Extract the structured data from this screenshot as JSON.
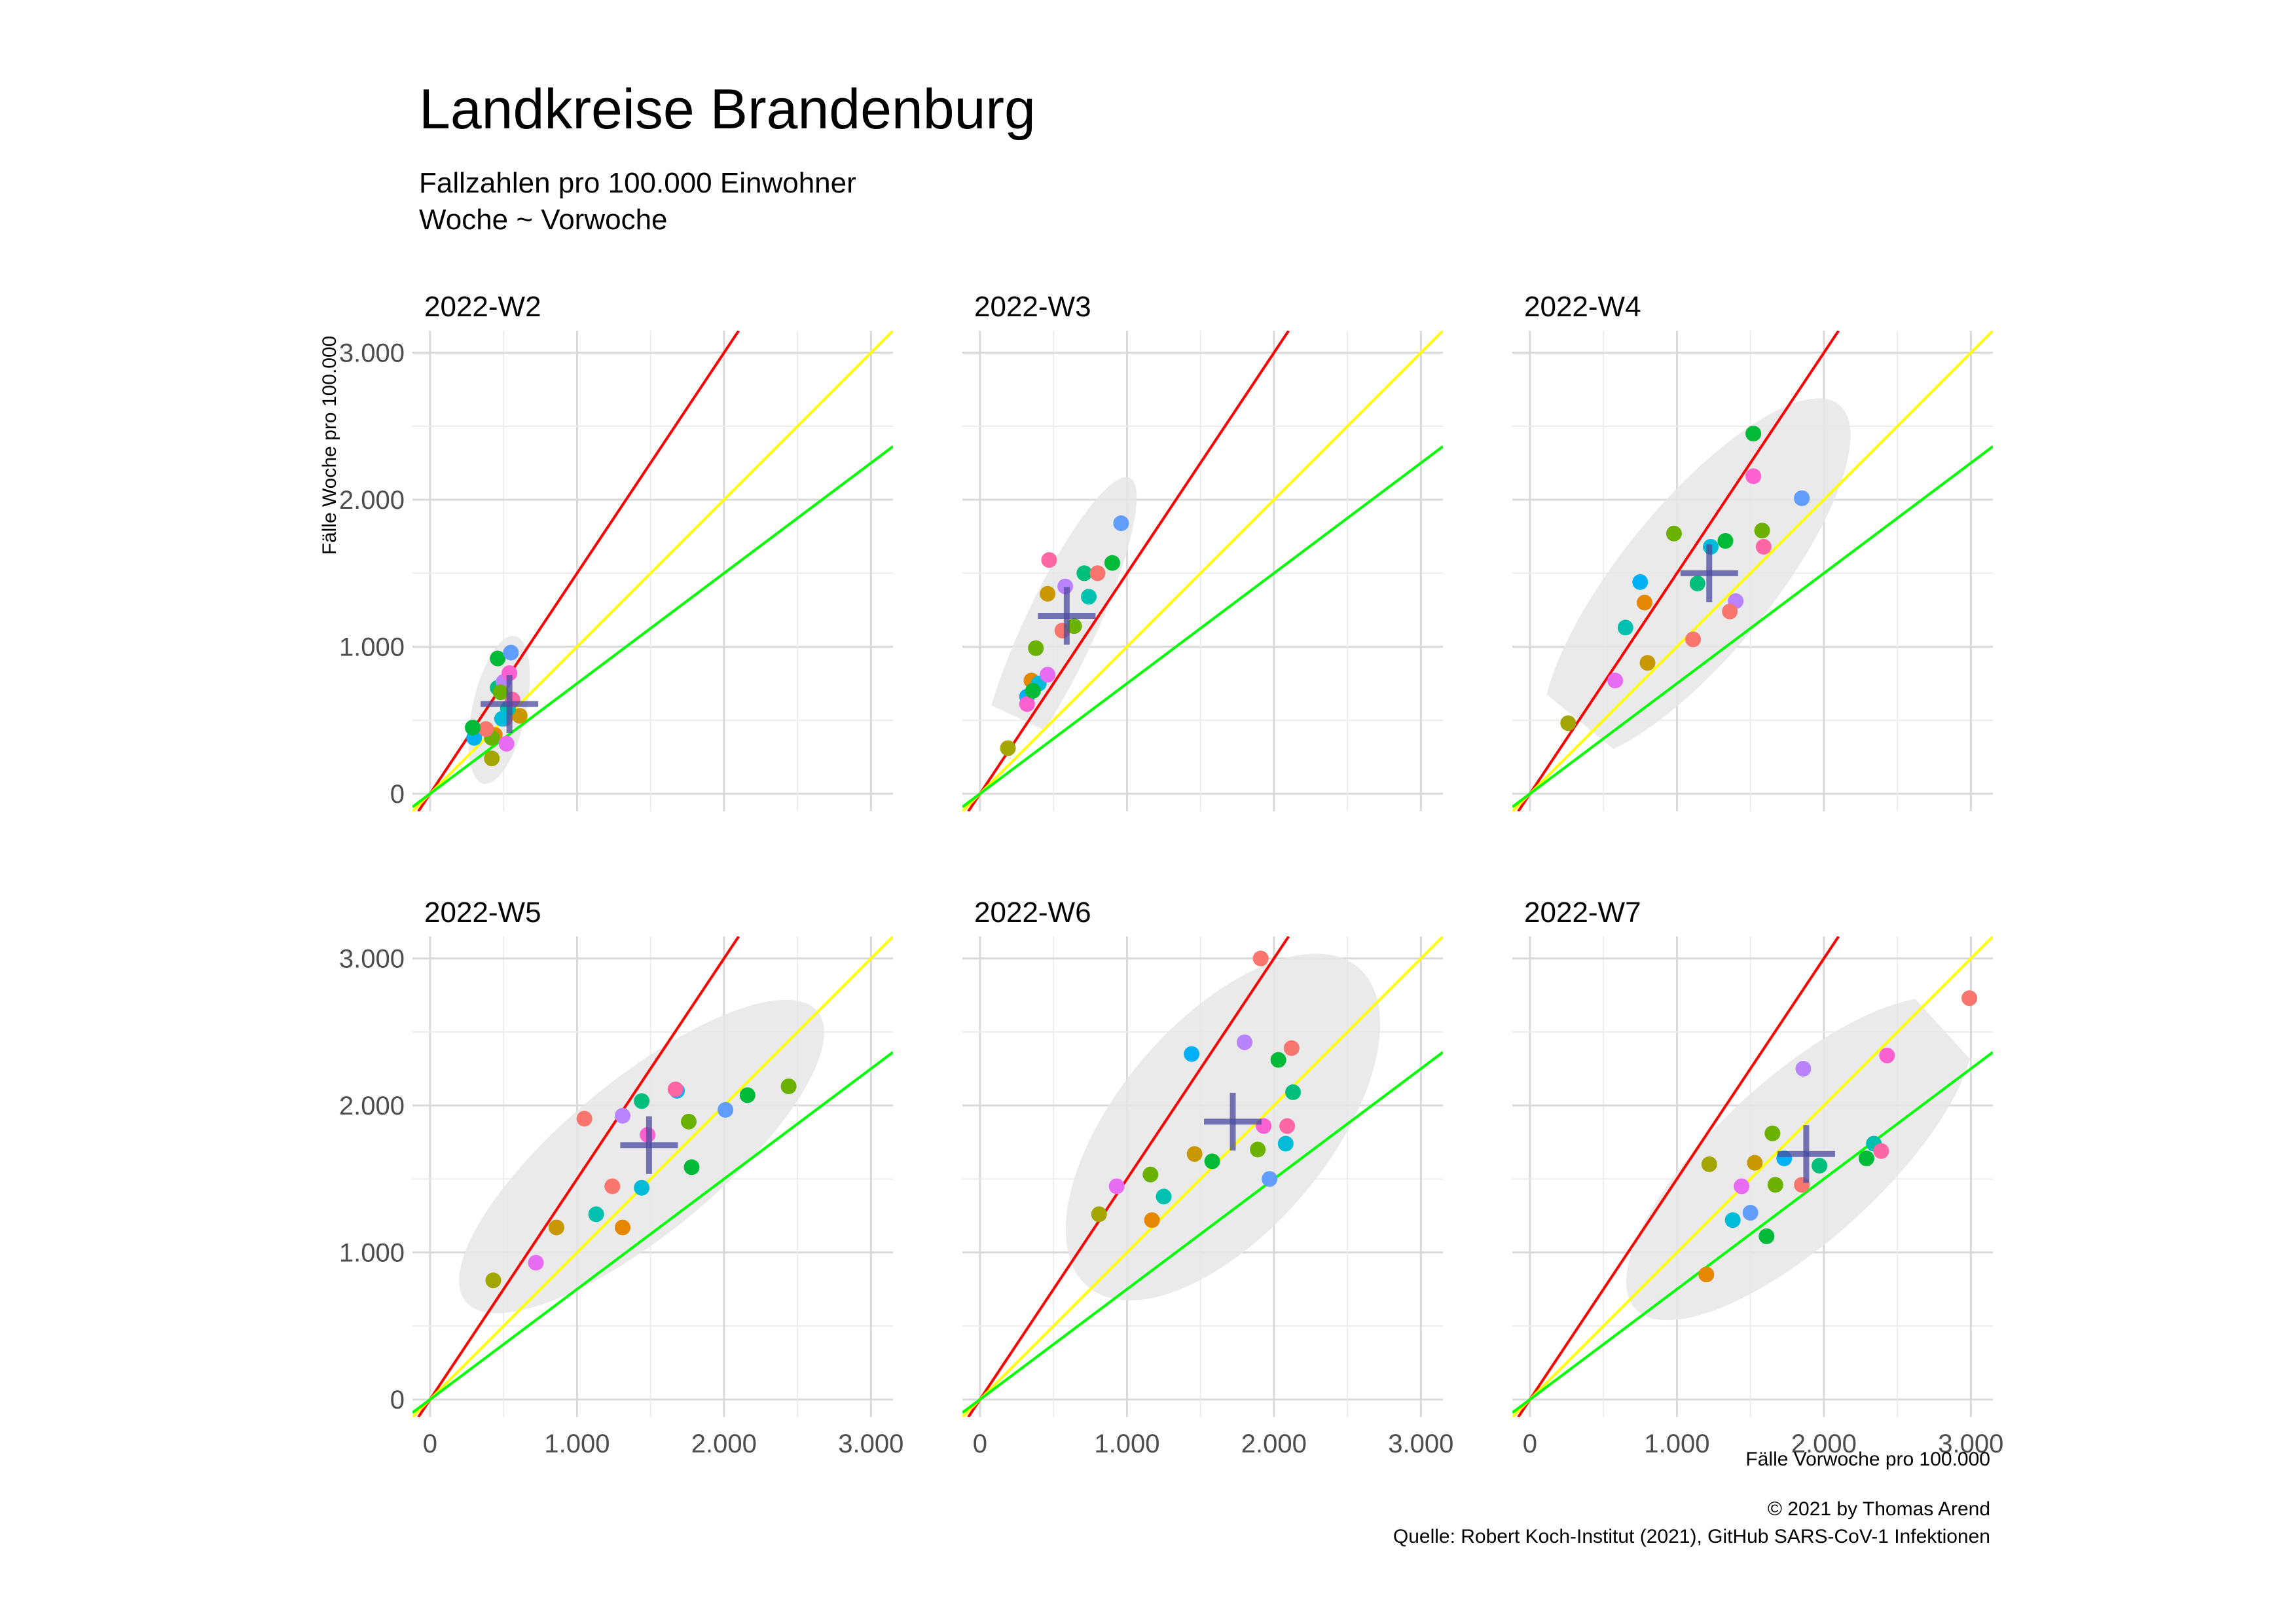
{
  "chart": {
    "title": "Landkreise Brandenburg",
    "subtitle_line1": "Fallzahlen pro 100.000 Einwohner",
    "subtitle_line2": "Woche ~ Vorwoche",
    "ylabel": "Fälle Woche pro 100.000",
    "xlabel": "Fälle Vorwoche pro 100.000",
    "caption_line1": "© 2021 by Thomas Arend",
    "caption_line2": "Quelle: Robert Koch-Institut (2021), GitHub SARS-CoV-1 Infektionen"
  },
  "chart_data": {
    "type": "scatter",
    "xlim": [
      -120,
      3150
    ],
    "ylim": [
      -120,
      3150
    ],
    "ticks": [
      0,
      1000,
      2000,
      3000
    ],
    "tick_labels": [
      "0",
      "1.000",
      "2.000",
      "3.000"
    ],
    "grid": true,
    "reference_lines": [
      {
        "slope": 1.5,
        "color": "#ff0000"
      },
      {
        "slope": 1.0,
        "color": "#ffff00"
      },
      {
        "slope": 0.75,
        "color": "#00ff00"
      }
    ],
    "point_colors": [
      "#f8766d",
      "#e58700",
      "#c99800",
      "#a3a500",
      "#6bb100",
      "#00ba38",
      "#00bf7d",
      "#00c0af",
      "#00bcd8",
      "#00b0f6",
      "#619cff",
      "#b983ff",
      "#e76bf3",
      "#fd61d1",
      "#ff67a4",
      "#f8766d",
      "#6bb100",
      "#00ba38"
    ],
    "mean_marker_color": "#4b4ba0",
    "ellipse_color": "#e6e6e6",
    "panels": [
      {
        "label": "2022-W2",
        "mean": [
          540,
          610
        ],
        "points": [
          [
            510,
            510
          ],
          [
            440,
            400
          ],
          [
            610,
            530
          ],
          [
            420,
            240
          ],
          [
            420,
            380
          ],
          [
            460,
            920
          ],
          [
            460,
            720
          ],
          [
            530,
            580
          ],
          [
            490,
            510
          ],
          [
            300,
            380
          ],
          [
            550,
            960
          ],
          [
            500,
            760
          ],
          [
            520,
            340
          ],
          [
            540,
            820
          ],
          [
            560,
            640
          ],
          [
            380,
            440
          ],
          [
            480,
            690
          ],
          [
            290,
            450
          ]
        ]
      },
      {
        "label": "2022-W3",
        "mean": [
          590,
          1210
        ],
        "points": [
          [
            560,
            1110
          ],
          [
            350,
            770
          ],
          [
            460,
            1360
          ],
          [
            190,
            310
          ],
          [
            380,
            990
          ],
          [
            900,
            1570
          ],
          [
            710,
            1500
          ],
          [
            740,
            1340
          ],
          [
            400,
            750
          ],
          [
            320,
            660
          ],
          [
            960,
            1840
          ],
          [
            580,
            1410
          ],
          [
            460,
            810
          ],
          [
            320,
            610
          ],
          [
            470,
            1590
          ],
          [
            800,
            1500
          ],
          [
            640,
            1140
          ],
          [
            360,
            700
          ]
        ]
      },
      {
        "label": "2022-W4",
        "mean": [
          1220,
          1500
        ],
        "points": [
          [
            1110,
            1050
          ],
          [
            780,
            1300
          ],
          [
            800,
            890
          ],
          [
            260,
            480
          ],
          [
            980,
            1770
          ],
          [
            1520,
            2450
          ],
          [
            1140,
            1430
          ],
          [
            650,
            1130
          ],
          [
            1230,
            1680
          ],
          [
            750,
            1440
          ],
          [
            1850,
            2010
          ],
          [
            1400,
            1310
          ],
          [
            580,
            770
          ],
          [
            1520,
            2160
          ],
          [
            1590,
            1680
          ],
          [
            1360,
            1240
          ],
          [
            1580,
            1790
          ],
          [
            1330,
            1720
          ]
        ]
      },
      {
        "label": "2022-W5",
        "mean": [
          1490,
          1730
        ],
        "points": [
          [
            1050,
            1910
          ],
          [
            1310,
            1170
          ],
          [
            860,
            1170
          ],
          [
            430,
            810
          ],
          [
            1760,
            1890
          ],
          [
            1780,
            1580
          ],
          [
            1440,
            2030
          ],
          [
            1130,
            1260
          ],
          [
            1440,
            1440
          ],
          [
            1680,
            2100
          ],
          [
            2010,
            1970
          ],
          [
            1310,
            1930
          ],
          [
            720,
            930
          ],
          [
            1480,
            1800
          ],
          [
            1670,
            2110
          ],
          [
            1240,
            1450
          ],
          [
            2440,
            2130
          ],
          [
            2160,
            2070
          ]
        ]
      },
      {
        "label": "2022-W6",
        "mean": [
          1720,
          1890
        ],
        "points": [
          [
            1910,
            3000
          ],
          [
            1170,
            1220
          ],
          [
            1460,
            1670
          ],
          [
            810,
            1260
          ],
          [
            1890,
            1700
          ],
          [
            1580,
            1620
          ],
          [
            2130,
            2090
          ],
          [
            1250,
            1380
          ],
          [
            2080,
            1740
          ],
          [
            1440,
            2350
          ],
          [
            1970,
            1500
          ],
          [
            1800,
            2430
          ],
          [
            930,
            1450
          ],
          [
            1930,
            1860
          ],
          [
            2090,
            1860
          ],
          [
            2120,
            2390
          ],
          [
            1160,
            1530
          ],
          [
            2030,
            2310
          ]
        ]
      },
      {
        "label": "2022-W7",
        "mean": [
          1880,
          1670
        ],
        "points": [
          [
            2990,
            2730
          ],
          [
            1200,
            850
          ],
          [
            1530,
            1610
          ],
          [
            1220,
            1600
          ],
          [
            1670,
            1460
          ],
          [
            1610,
            1110
          ],
          [
            1970,
            1590
          ],
          [
            2340,
            1740
          ],
          [
            1380,
            1220
          ],
          [
            1730,
            1640
          ],
          [
            1500,
            1270
          ],
          [
            1860,
            2250
          ],
          [
            1440,
            1450
          ],
          [
            2430,
            2340
          ],
          [
            2390,
            1690
          ],
          [
            1850,
            1460
          ],
          [
            1650,
            1810
          ],
          [
            2290,
            1640
          ]
        ]
      }
    ]
  }
}
